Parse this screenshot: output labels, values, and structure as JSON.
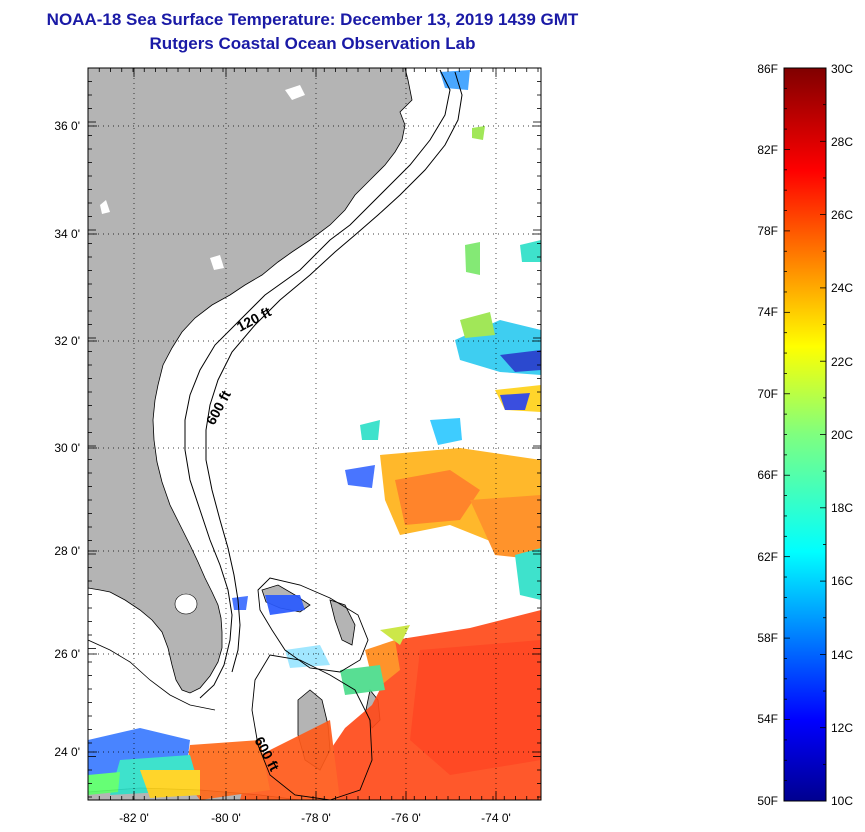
{
  "header": {
    "title_line1": "NOAA-18 Sea Surface Temperature:  December 13, 2019 1439 GMT",
    "title_line2": "Rutgers Coastal Ocean Observation Lab"
  },
  "map": {
    "lat_labels": [
      "36 0'",
      "34 0'",
      "32 0'",
      "30 0'",
      "28 0'",
      "26 0'",
      "24 0'"
    ],
    "lon_labels": [
      "-82 0'",
      "-80 0'",
      "-78 0'",
      "-76 0'",
      "-74 0'"
    ],
    "contour_labels": [
      "120 ft",
      "600 ft",
      "600 ft"
    ],
    "colors": {
      "land": "#b4b4b4",
      "ocean": "#ffffff",
      "frame": "#000000"
    }
  },
  "colorbar": {
    "f_labels": [
      "86F",
      "82F",
      "78F",
      "74F",
      "70F",
      "66F",
      "62F",
      "58F",
      "54F",
      "50F"
    ],
    "c_labels": [
      "30C",
      "28C",
      "26C",
      "24C",
      "22C",
      "20C",
      "18C",
      "16C",
      "14C",
      "12C",
      "10C"
    ],
    "range_c": [
      10,
      30
    ],
    "range_f": [
      50,
      86
    ]
  }
}
